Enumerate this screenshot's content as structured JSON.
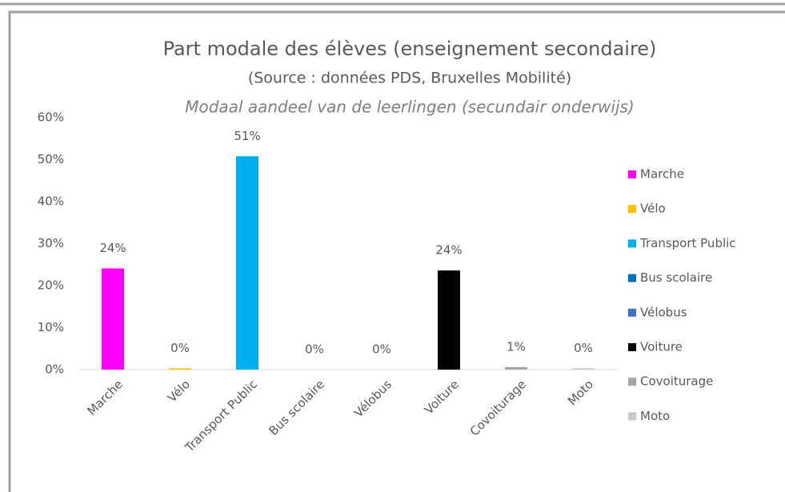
{
  "chart_data": {
    "type": "bar",
    "title": "Part modale des élèves (enseignement secondaire)",
    "subtitle": "(Source : données PDS, Bruxelles Mobilité)",
    "subtitle2": "Modaal aandeel van de leerlingen (secundair onderwijs)",
    "categories": [
      "Marche",
      "Vélo",
      "Transport Public",
      "Bus scolaire",
      "Vélobus",
      "Voiture",
      "Covoiturage",
      "Moto"
    ],
    "values": [
      24.1,
      0.3,
      50.8,
      0,
      0,
      23.6,
      0.6,
      0.3
    ],
    "value_labels": [
      "24%",
      "0%",
      "51%",
      "0%",
      "0%",
      "24%",
      "1%",
      "0%"
    ],
    "colors": [
      "#ff00ff",
      "#ffc000",
      "#00b0f0",
      "#0070c0",
      "#4472c4",
      "#000000",
      "#a5a5a5",
      "#c9c9c9"
    ],
    "ylim": [
      0,
      60
    ],
    "yticks": [
      {
        "value": 0,
        "label": "0%"
      },
      {
        "value": 10,
        "label": "10%"
      },
      {
        "value": 20,
        "label": "20%"
      },
      {
        "value": 30,
        "label": "30%"
      },
      {
        "value": 40,
        "label": "40%"
      },
      {
        "value": 50,
        "label": "50%"
      },
      {
        "value": 60,
        "label": "60%"
      }
    ],
    "grid": false,
    "legend": "right"
  }
}
